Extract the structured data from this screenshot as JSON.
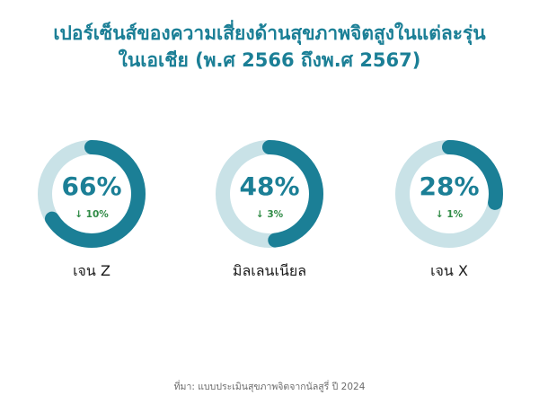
{
  "title": {
    "line1": "เปอร์เซ็นส์ของความเสี่ยงด้านสุขภาพจิตสูงในแต่ละรุ่น",
    "line2": "ในเอเชีย (พ.ศ 2566 ถึงพ.ศ 2567)"
  },
  "source": "ที่มา: แบบประเมินสุขภาพจิตจากนัลสูรี่ ปี 2024",
  "colors": {
    "accent": "#1b7f96",
    "track": "#c9e2e7",
    "change": "#2f8a45"
  },
  "chart_data": {
    "type": "donut",
    "unit": "%",
    "max": 100,
    "items": [
      {
        "category": "เจน Z",
        "value": 66,
        "value_label": "66%",
        "change": -10,
        "change_label": "↓ 10%"
      },
      {
        "category": "มิลเลนเนียล",
        "value": 48,
        "value_label": "48%",
        "change": -3,
        "change_label": "↓ 3%"
      },
      {
        "category": "เจน X",
        "value": 28,
        "value_label": "28%",
        "change": -1,
        "change_label": "↓ 1%"
      }
    ]
  }
}
